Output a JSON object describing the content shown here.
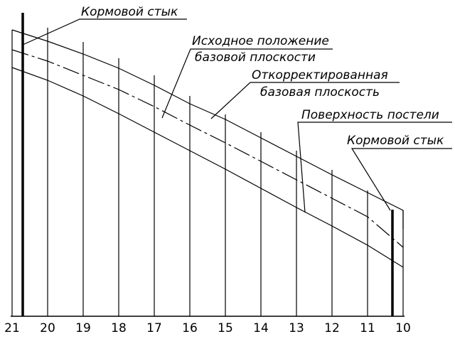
{
  "labels": {
    "stern_joint_top": "Кормовой стык",
    "initial_position_line1": "Исходное положение",
    "initial_position_line2": "базовой плоскости",
    "corrected_line1": "Откорректированная",
    "corrected_line2": "базовая плоскость",
    "bed_surface": "Поверхность постели",
    "stern_joint_right": "Кормовой стык"
  },
  "frames": [
    "21",
    "20",
    "19",
    "18",
    "17",
    "16",
    "15",
    "14",
    "13",
    "12",
    "11",
    "10"
  ]
}
